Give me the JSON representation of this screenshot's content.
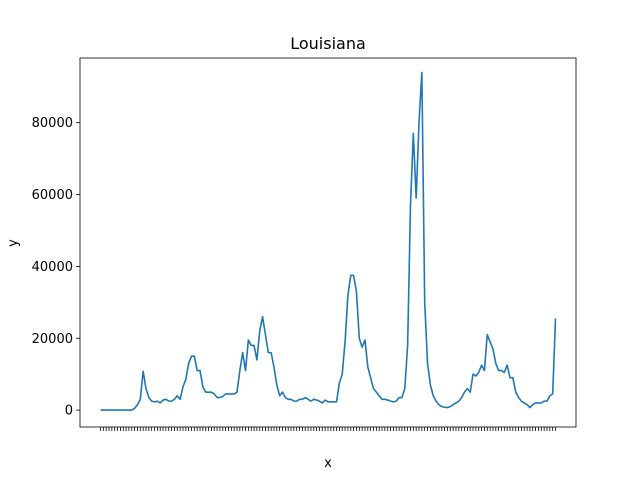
{
  "chart_data": {
    "type": "line",
    "title": "Louisiana",
    "xlabel": "x",
    "ylabel": "y",
    "ylim": [
      -4700,
      98000
    ],
    "yticks": [
      0,
      20000,
      40000,
      60000,
      80000
    ],
    "ytick_labels": [
      "0",
      "20000",
      "40000",
      "60000",
      "80000"
    ],
    "grid": false,
    "line_color": "#1f77b4",
    "series": [
      {
        "values": [
          0,
          0,
          0,
          0,
          0,
          0,
          0,
          0,
          0,
          0,
          0,
          0,
          500,
          1500,
          3000,
          10800,
          6000,
          3500,
          2500,
          2300,
          2500,
          2000,
          2800,
          3000,
          2500,
          2500,
          3000,
          4000,
          3000,
          6500,
          8500,
          13000,
          15000,
          15000,
          11000,
          11000,
          6500,
          5000,
          5000,
          5000,
          4500,
          3500,
          3500,
          3800,
          4500,
          4500,
          4500,
          4500,
          5000,
          11000,
          16000,
          11000,
          19500,
          18000,
          18000,
          14000,
          22000,
          26000,
          21000,
          16000,
          16000,
          12000,
          7000,
          4000,
          5000,
          3500,
          3000,
          3000,
          2500,
          2500,
          3000,
          3000,
          3500,
          3000,
          2500,
          3000,
          2800,
          2500,
          2000,
          2800,
          2300,
          2300,
          2300,
          2300,
          7500,
          10000,
          19000,
          32000,
          37500,
          37500,
          33000,
          20000,
          17500,
          19500,
          12000,
          9000,
          6000,
          5000,
          4000,
          3000,
          3000,
          2800,
          2500,
          2300,
          2500,
          3500,
          3500,
          6000,
          18000,
          57000,
          77000,
          59000,
          80000,
          94000,
          30000,
          13000,
          7000,
          4000,
          2500,
          1500,
          1000,
          800,
          700,
          1000,
          1500,
          2000,
          2500,
          3500,
          5000,
          6000,
          5000,
          10000,
          9500,
          10500,
          12500,
          11000,
          21000,
          19000,
          17000,
          13000,
          11000,
          11000,
          10500,
          12500,
          9000,
          9000,
          5000,
          3500,
          2500,
          2000,
          1500,
          700,
          1500,
          2000,
          2000,
          2000,
          2500,
          2500,
          4000,
          4500,
          25500
        ]
      }
    ]
  }
}
